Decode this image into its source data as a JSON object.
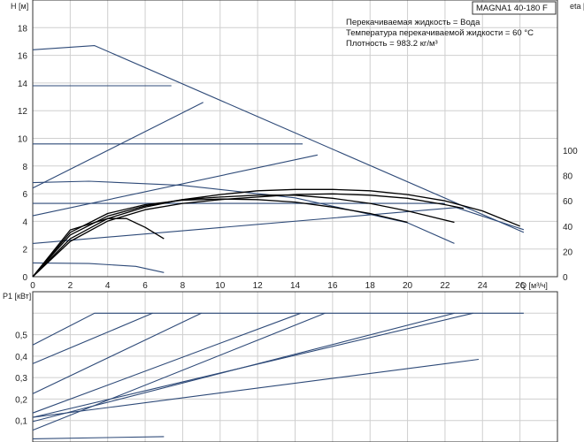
{
  "model": "MAGNA1 40-180 F",
  "info": [
    "Перекачиваемая жидкость = Вода",
    "Температура перекачиваемой жидкости = 60 °C",
    "Плотность = 983.2 кг/м³"
  ],
  "chart_data": [
    {
      "type": "line",
      "title": "",
      "xlabel": "Q [м³/ч]",
      "ylabel": "H [м]",
      "y2label": "eta [%]",
      "xlim": [
        0,
        28
      ],
      "ylim": [
        0,
        20
      ],
      "y2lim": [
        0,
        100
      ],
      "xticks": [
        0,
        2,
        4,
        6,
        8,
        10,
        12,
        14,
        16,
        18,
        20,
        22,
        24,
        26
      ],
      "yticks": [
        0,
        2,
        4,
        6,
        8,
        10,
        12,
        14,
        16,
        18
      ],
      "y2ticks": [
        0,
        20,
        40,
        60,
        80,
        100
      ],
      "grid": true,
      "series": [
        {
          "kind": "H",
          "points": [
            [
              0,
              16.4
            ],
            [
              3.3,
              16.7
            ],
            [
              26.2,
              3.2
            ]
          ]
        },
        {
          "kind": "H",
          "points": [
            [
              0,
              13.8
            ],
            [
              7.4,
              13.8
            ]
          ]
        },
        {
          "kind": "H",
          "points": [
            [
              0,
              9.6
            ],
            [
              14.4,
              9.6
            ]
          ]
        },
        {
          "kind": "H",
          "points": [
            [
              0,
              5.3
            ],
            [
              22,
              5.3
            ]
          ]
        },
        {
          "kind": "H",
          "points": [
            [
              0,
              6.4
            ],
            [
              9.1,
              12.6
            ]
          ]
        },
        {
          "kind": "H",
          "points": [
            [
              0,
              4.4
            ],
            [
              15.2,
              8.8
            ]
          ]
        },
        {
          "kind": "H",
          "points": [
            [
              0,
              2.4
            ],
            [
              22.6,
              5.0
            ],
            [
              26.2,
              3.4
            ]
          ]
        },
        {
          "kind": "H",
          "points": [
            [
              0,
              6.8
            ],
            [
              3,
              6.9
            ],
            [
              8,
              6.6
            ],
            [
              14,
              5.7
            ],
            [
              20,
              3.9
            ],
            [
              22.5,
              2.4
            ]
          ]
        },
        {
          "kind": "H",
          "points": [
            [
              0,
              1.0
            ],
            [
              3,
              0.95
            ],
            [
              5.5,
              0.75
            ],
            [
              7,
              0.3
            ]
          ]
        },
        {
          "kind": "eta",
          "points": [
            [
              0,
              0
            ],
            [
              2,
              30
            ],
            [
              4,
              46
            ],
            [
              6,
              55
            ],
            [
              8,
              61
            ],
            [
              10,
              65
            ],
            [
              12,
              68
            ],
            [
              14,
              69
            ],
            [
              16,
              69
            ],
            [
              18,
              68
            ],
            [
              20,
              65
            ],
            [
              22,
              60
            ],
            [
              24,
              52
            ],
            [
              26,
              40
            ]
          ]
        },
        {
          "kind": "eta",
          "points": [
            [
              0,
              0
            ],
            [
              2,
              33
            ],
            [
              4,
              48
            ],
            [
              6,
              56
            ],
            [
              8,
              61
            ],
            [
              10,
              63
            ],
            [
              12,
              64.5
            ],
            [
              14,
              64.5
            ],
            [
              16,
              62
            ],
            [
              18,
              58
            ],
            [
              20,
              52
            ],
            [
              22.5,
              43
            ]
          ]
        },
        {
          "kind": "eta",
          "points": [
            [
              0,
              0
            ],
            [
              2,
              35
            ],
            [
              4,
              50
            ],
            [
              6,
              57
            ],
            [
              8,
              60.5
            ],
            [
              10,
              61.5
            ],
            [
              12,
              61
            ],
            [
              14,
              59
            ],
            [
              16,
              55
            ],
            [
              18,
              50
            ],
            [
              20,
              43
            ]
          ]
        },
        {
          "kind": "eta",
          "points": [
            [
              0,
              0
            ],
            [
              2,
              37
            ],
            [
              4,
              46
            ],
            [
              5,
              46
            ],
            [
              6,
              39
            ],
            [
              7,
              30
            ]
          ]
        },
        {
          "kind": "eta",
          "points": [
            [
              0,
              0
            ],
            [
              2,
              28
            ],
            [
              4,
              44
            ],
            [
              6,
              53
            ],
            [
              8,
              58
            ],
            [
              10,
              61
            ],
            [
              12,
              63
            ],
            [
              14,
              65
            ],
            [
              16,
              65.5
            ],
            [
              18,
              64.5
            ],
            [
              20,
              62
            ],
            [
              22,
              57
            ],
            [
              23,
              54
            ]
          ]
        }
      ]
    },
    {
      "type": "line",
      "title": "",
      "xlabel": "",
      "ylabel": "P1 [кВт]",
      "ylim": [
        0,
        0.7
      ],
      "yticks": [
        0.1,
        0.2,
        0.3,
        0.4,
        0.5
      ],
      "ytick_labels": [
        "0,1",
        "0,2",
        "0,3",
        "0,4",
        "0,5"
      ],
      "grid": true,
      "series": [
        {
          "points": [
            [
              0,
              0.452
            ],
            [
              3.3,
              0.6
            ],
            [
              26.2,
              0.6
            ]
          ]
        },
        {
          "points": [
            [
              0,
              0.365
            ],
            [
              6.4,
              0.6
            ]
          ]
        },
        {
          "points": [
            [
              0,
              0.225
            ],
            [
              9,
              0.6
            ]
          ]
        },
        {
          "points": [
            [
              0,
              0.135
            ],
            [
              14.3,
              0.6
            ]
          ]
        },
        {
          "points": [
            [
              0,
              0.055
            ],
            [
              15.6,
              0.6
            ]
          ]
        },
        {
          "points": [
            [
              0,
              0.115
            ],
            [
              23.5,
              0.6
            ]
          ]
        },
        {
          "points": [
            [
              0,
              0.095
            ],
            [
              22.5,
              0.6
            ]
          ]
        },
        {
          "points": [
            [
              0,
              0.115
            ],
            [
              23.8,
              0.385
            ]
          ]
        },
        {
          "points": [
            [
              0,
              0.015
            ],
            [
              7,
              0.025
            ]
          ]
        }
      ]
    }
  ]
}
